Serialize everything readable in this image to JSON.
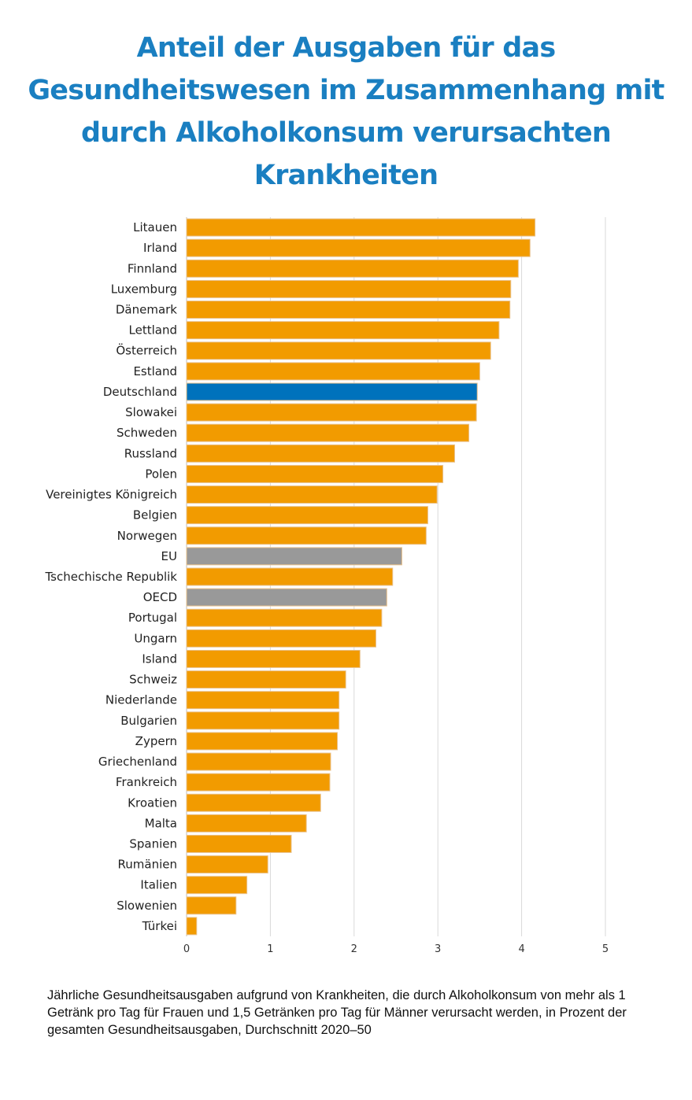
{
  "chart_data": {
    "type": "bar",
    "orientation": "horizontal",
    "title": "Anteil der Ausgaben für das Gesundheitswesen im Zusammenhang mit durch Alkoholkonsum verursachten Krankheiten",
    "caption": "Jährliche Gesundheitsausgaben aufgrund von Krankheiten, die durch Alkoholkonsum von mehr als 1 Getränk pro Tag für Frauen und 1,5 Getränken pro Tag für Männer verursacht werden, in Prozent der gesamten Gesundheitsausgaben, Durchschnitt 2020–50",
    "categories": [
      "Litauen",
      "Irland",
      "Finnland",
      "Luxemburg",
      "Dänemark",
      "Lettland",
      "Österreich",
      "Estland",
      "Deutschland",
      "Slowakei",
      "Schweden",
      "Russland",
      "Polen",
      "Vereinigtes Königreich",
      "Belgien",
      "Norwegen",
      "EU",
      "Tschechische Republik",
      "OECD",
      "Portugal",
      "Ungarn",
      "Island",
      "Schweiz",
      "Niederlande",
      "Bulgarien",
      "Zypern",
      "Griechenland",
      "Frankreich",
      "Kroatien",
      "Malta",
      "Spanien",
      "Rumänien",
      "Italien",
      "Slowenien",
      "Türkei"
    ],
    "values": [
      4.16,
      4.1,
      3.96,
      3.87,
      3.86,
      3.73,
      3.63,
      3.5,
      3.47,
      3.46,
      3.37,
      3.2,
      3.06,
      2.99,
      2.88,
      2.86,
      2.57,
      2.46,
      2.39,
      2.33,
      2.26,
      2.07,
      1.9,
      1.82,
      1.82,
      1.8,
      1.72,
      1.71,
      1.6,
      1.43,
      1.25,
      0.97,
      0.72,
      0.59,
      0.12
    ],
    "highlight": {
      "Deutschland": "#0072bc",
      "EU": "#999999",
      "OECD": "#999999"
    },
    "bar_color": "#f29b00",
    "bar_border_color": "#e8c08a",
    "grid_color": "#d9d9d9",
    "xticks": [
      0,
      1,
      2,
      3,
      4,
      5
    ],
    "xlim": [
      0,
      5
    ],
    "grid": "vertical",
    "legend": "none"
  }
}
